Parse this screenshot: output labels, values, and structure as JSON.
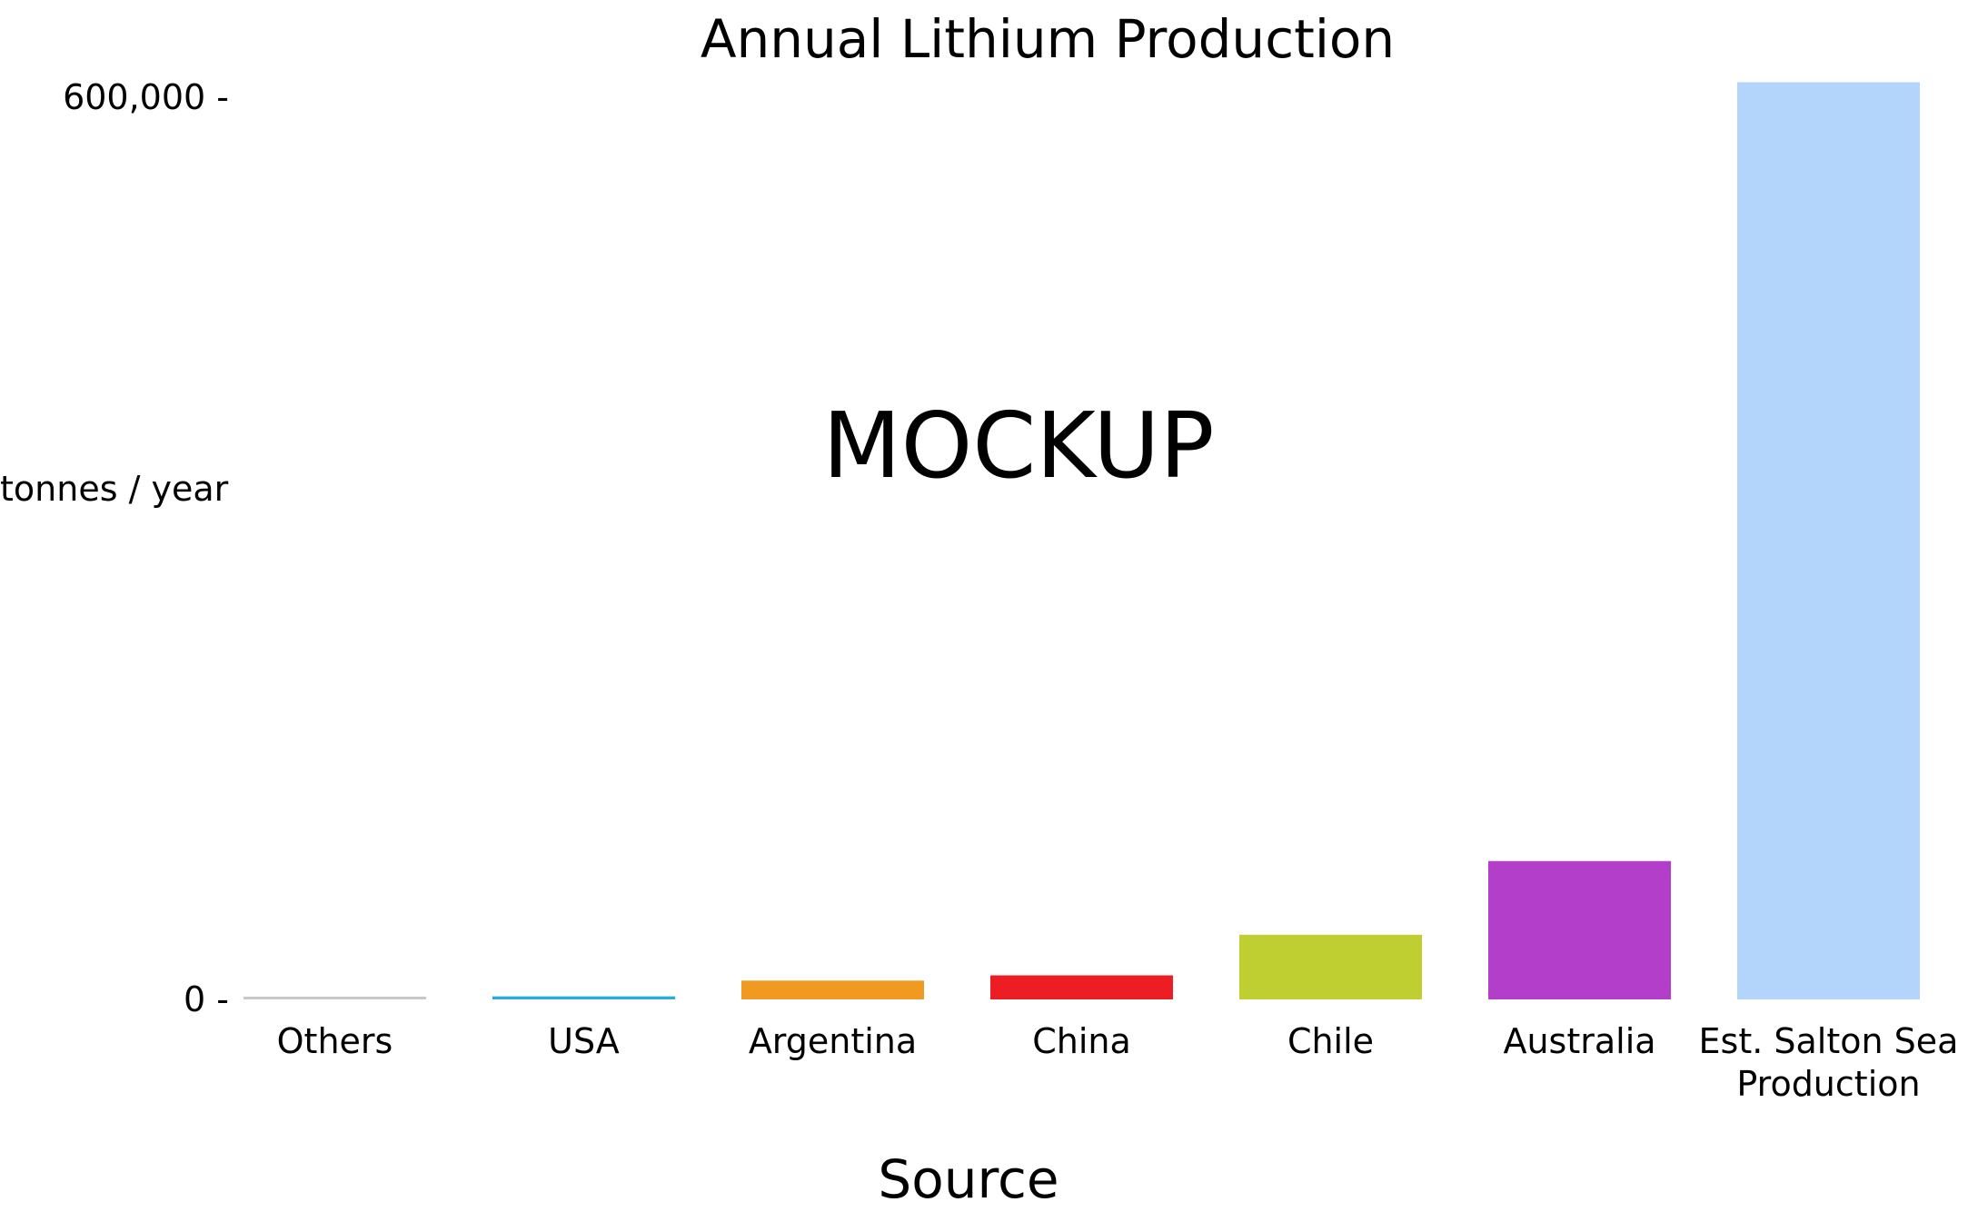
{
  "chart_data": {
    "type": "bar",
    "title": "Annual Lithium Production",
    "watermark": "MOCKUP",
    "xlabel": "Source",
    "ylabel": "tonnes / year",
    "ylim": [
      0,
      600000
    ],
    "yticks": [
      {
        "value": 0,
        "label": "0 -"
      },
      {
        "value": 600000,
        "label": "600,000 -"
      }
    ],
    "grid": false,
    "legend": "none",
    "categories": [
      "Others",
      "USA",
      "Argentina",
      "China",
      "Chile",
      "Australia",
      "Est. Salton Sea Production"
    ],
    "category_lines": [
      [
        "Others"
      ],
      [
        "USA"
      ],
      [
        "Argentina"
      ],
      [
        "China"
      ],
      [
        "Chile"
      ],
      [
        "Australia"
      ],
      [
        "Est. Salton Sea",
        "Production"
      ]
    ],
    "values": [
      1500,
      2000,
      12500,
      16000,
      43000,
      92000,
      610000
    ],
    "colors": [
      "#c8c8c8",
      "#29aae1",
      "#f09a22",
      "#ec1e24",
      "#bfcf32",
      "#b23ec9",
      "#b3d4fb"
    ]
  }
}
